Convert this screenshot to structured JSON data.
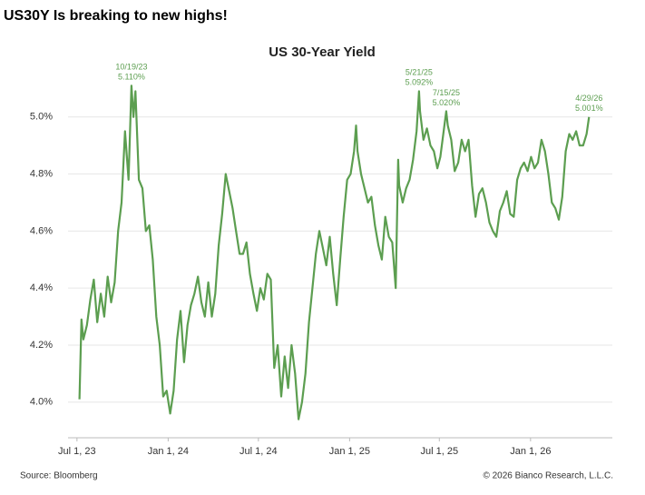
{
  "headline": "US30Y Is breaking to new highs!",
  "chart_data": {
    "type": "line",
    "title": "US 30-Year Yield",
    "source": "Source: Bloomberg",
    "copyright": "© 2026 Bianco Research, L.L.C.",
    "color": "#5c9e50",
    "grid": true,
    "xlim": [
      "2023-06-13",
      "2026-06-15"
    ],
    "xticks": [
      {
        "value": "2023-07-01",
        "label": "Jul 1, 23"
      },
      {
        "value": "2024-01-01",
        "label": "Jan 1, 24"
      },
      {
        "value": "2024-07-01",
        "label": "Jul 1, 24"
      },
      {
        "value": "2025-01-01",
        "label": "Jan 1, 25"
      },
      {
        "value": "2025-07-01",
        "label": "Jul 1, 25"
      },
      {
        "value": "2026-01-01",
        "label": "Jan 1, 26"
      }
    ],
    "ylim": [
      3.875,
      5.2
    ],
    "yticks": [
      {
        "value": 4.0,
        "label": "4.0%"
      },
      {
        "value": 4.2,
        "label": "4.2%"
      },
      {
        "value": 4.4,
        "label": "4.4%"
      },
      {
        "value": 4.6,
        "label": "4.6%"
      },
      {
        "value": 4.8,
        "label": "4.8%"
      },
      {
        "value": 5.0,
        "label": "5.0%"
      }
    ],
    "x": [
      "2023-07-06",
      "2023-07-10",
      "2023-07-14",
      "2023-07-21",
      "2023-07-28",
      "2023-08-04",
      "2023-08-11",
      "2023-08-18",
      "2023-08-25",
      "2023-09-01",
      "2023-09-08",
      "2023-09-15",
      "2023-09-22",
      "2023-09-29",
      "2023-10-06",
      "2023-10-13",
      "2023-10-19",
      "2023-10-23",
      "2023-10-27",
      "2023-11-03",
      "2023-11-10",
      "2023-11-17",
      "2023-11-24",
      "2023-12-01",
      "2023-12-08",
      "2023-12-15",
      "2023-12-22",
      "2023-12-29",
      "2024-01-05",
      "2024-01-12",
      "2024-01-19",
      "2024-01-26",
      "2024-02-02",
      "2024-02-09",
      "2024-02-16",
      "2024-02-23",
      "2024-03-01",
      "2024-03-08",
      "2024-03-15",
      "2024-03-22",
      "2024-03-29",
      "2024-04-05",
      "2024-04-12",
      "2024-04-19",
      "2024-04-26",
      "2024-05-03",
      "2024-05-10",
      "2024-05-17",
      "2024-05-24",
      "2024-05-31",
      "2024-06-07",
      "2024-06-14",
      "2024-06-21",
      "2024-06-28",
      "2024-07-05",
      "2024-07-12",
      "2024-07-19",
      "2024-07-26",
      "2024-08-02",
      "2024-08-09",
      "2024-08-16",
      "2024-08-23",
      "2024-08-30",
      "2024-09-06",
      "2024-09-13",
      "2024-09-20",
      "2024-09-27",
      "2024-10-04",
      "2024-10-11",
      "2024-10-18",
      "2024-10-25",
      "2024-11-01",
      "2024-11-08",
      "2024-11-15",
      "2024-11-22",
      "2024-11-29",
      "2024-12-06",
      "2024-12-13",
      "2024-12-20",
      "2024-12-27",
      "2025-01-03",
      "2025-01-10",
      "2025-01-14",
      "2025-01-17",
      "2025-01-24",
      "2025-01-31",
      "2025-02-07",
      "2025-02-14",
      "2025-02-21",
      "2025-02-28",
      "2025-03-07",
      "2025-03-14",
      "2025-03-21",
      "2025-03-28",
      "2025-04-04",
      "2025-04-09",
      "2025-04-11",
      "2025-04-18",
      "2025-04-25",
      "2025-05-02",
      "2025-05-09",
      "2025-05-16",
      "2025-05-21",
      "2025-05-23",
      "2025-05-30",
      "2025-06-06",
      "2025-06-13",
      "2025-06-20",
      "2025-06-27",
      "2025-07-03",
      "2025-07-15",
      "2025-07-18",
      "2025-07-25",
      "2025-08-01",
      "2025-08-08",
      "2025-08-15",
      "2025-08-22",
      "2025-08-29",
      "2025-09-05",
      "2025-09-12",
      "2025-09-19",
      "2025-09-26",
      "2025-10-03",
      "2025-10-10",
      "2025-10-17",
      "2025-10-24",
      "2025-10-31",
      "2025-11-07",
      "2025-11-14",
      "2025-11-21",
      "2025-11-28",
      "2025-12-05",
      "2025-12-12",
      "2025-12-19",
      "2025-12-26",
      "2026-01-02",
      "2026-01-09",
      "2026-01-16",
      "2026-01-23",
      "2026-01-30",
      "2026-02-06",
      "2026-02-13",
      "2026-02-20",
      "2026-02-27",
      "2026-03-06",
      "2026-03-13",
      "2026-03-20",
      "2026-03-27",
      "2026-04-03",
      "2026-04-10",
      "2026-04-17",
      "2026-04-24",
      "2026-04-29"
    ],
    "values": [
      4.01,
      4.29,
      4.22,
      4.27,
      4.36,
      4.43,
      4.28,
      4.38,
      4.3,
      4.44,
      4.35,
      4.42,
      4.6,
      4.7,
      4.95,
      4.78,
      5.11,
      5.0,
      5.09,
      4.78,
      4.75,
      4.6,
      4.62,
      4.5,
      4.3,
      4.2,
      4.02,
      4.04,
      3.96,
      4.04,
      4.22,
      4.32,
      4.14,
      4.27,
      4.34,
      4.38,
      4.44,
      4.35,
      4.3,
      4.42,
      4.3,
      4.38,
      4.55,
      4.66,
      4.8,
      4.74,
      4.68,
      4.6,
      4.52,
      4.52,
      4.56,
      4.45,
      4.38,
      4.32,
      4.4,
      4.36,
      4.45,
      4.43,
      4.12,
      4.2,
      4.02,
      4.16,
      4.05,
      4.2,
      4.1,
      3.94,
      4.0,
      4.1,
      4.28,
      4.4,
      4.52,
      4.6,
      4.54,
      4.48,
      4.58,
      4.45,
      4.34,
      4.5,
      4.65,
      4.78,
      4.8,
      4.88,
      4.97,
      4.88,
      4.8,
      4.75,
      4.7,
      4.72,
      4.62,
      4.55,
      4.5,
      4.65,
      4.58,
      4.56,
      4.4,
      4.85,
      4.76,
      4.7,
      4.75,
      4.78,
      4.85,
      4.95,
      5.09,
      5.02,
      4.92,
      4.96,
      4.9,
      4.88,
      4.82,
      4.86,
      5.02,
      4.97,
      4.92,
      4.81,
      4.84,
      4.92,
      4.88,
      4.92,
      4.76,
      4.65,
      4.73,
      4.75,
      4.7,
      4.63,
      4.6,
      4.58,
      4.67,
      4.7,
      4.74,
      4.66,
      4.65,
      4.78,
      4.82,
      4.84,
      4.81,
      4.86,
      4.82,
      4.84,
      4.92,
      4.88,
      4.8,
      4.7,
      4.68,
      4.64,
      4.72,
      4.88,
      4.94,
      4.92,
      4.95,
      4.9,
      4.9,
      4.94,
      5.0
    ],
    "annotations": [
      {
        "date_label": "10/19/23",
        "value_label": "5.110%",
        "x": "2023-10-19",
        "value": 5.11
      },
      {
        "date_label": "5/21/25",
        "value_label": "5.092%",
        "x": "2025-05-21",
        "value": 5.092
      },
      {
        "date_label": "7/15/25",
        "value_label": "5.020%",
        "x": "2025-07-15",
        "value": 5.02
      },
      {
        "date_label": "4/29/26",
        "value_label": "5.001%",
        "x": "2026-04-29",
        "value": 5.001
      }
    ]
  }
}
